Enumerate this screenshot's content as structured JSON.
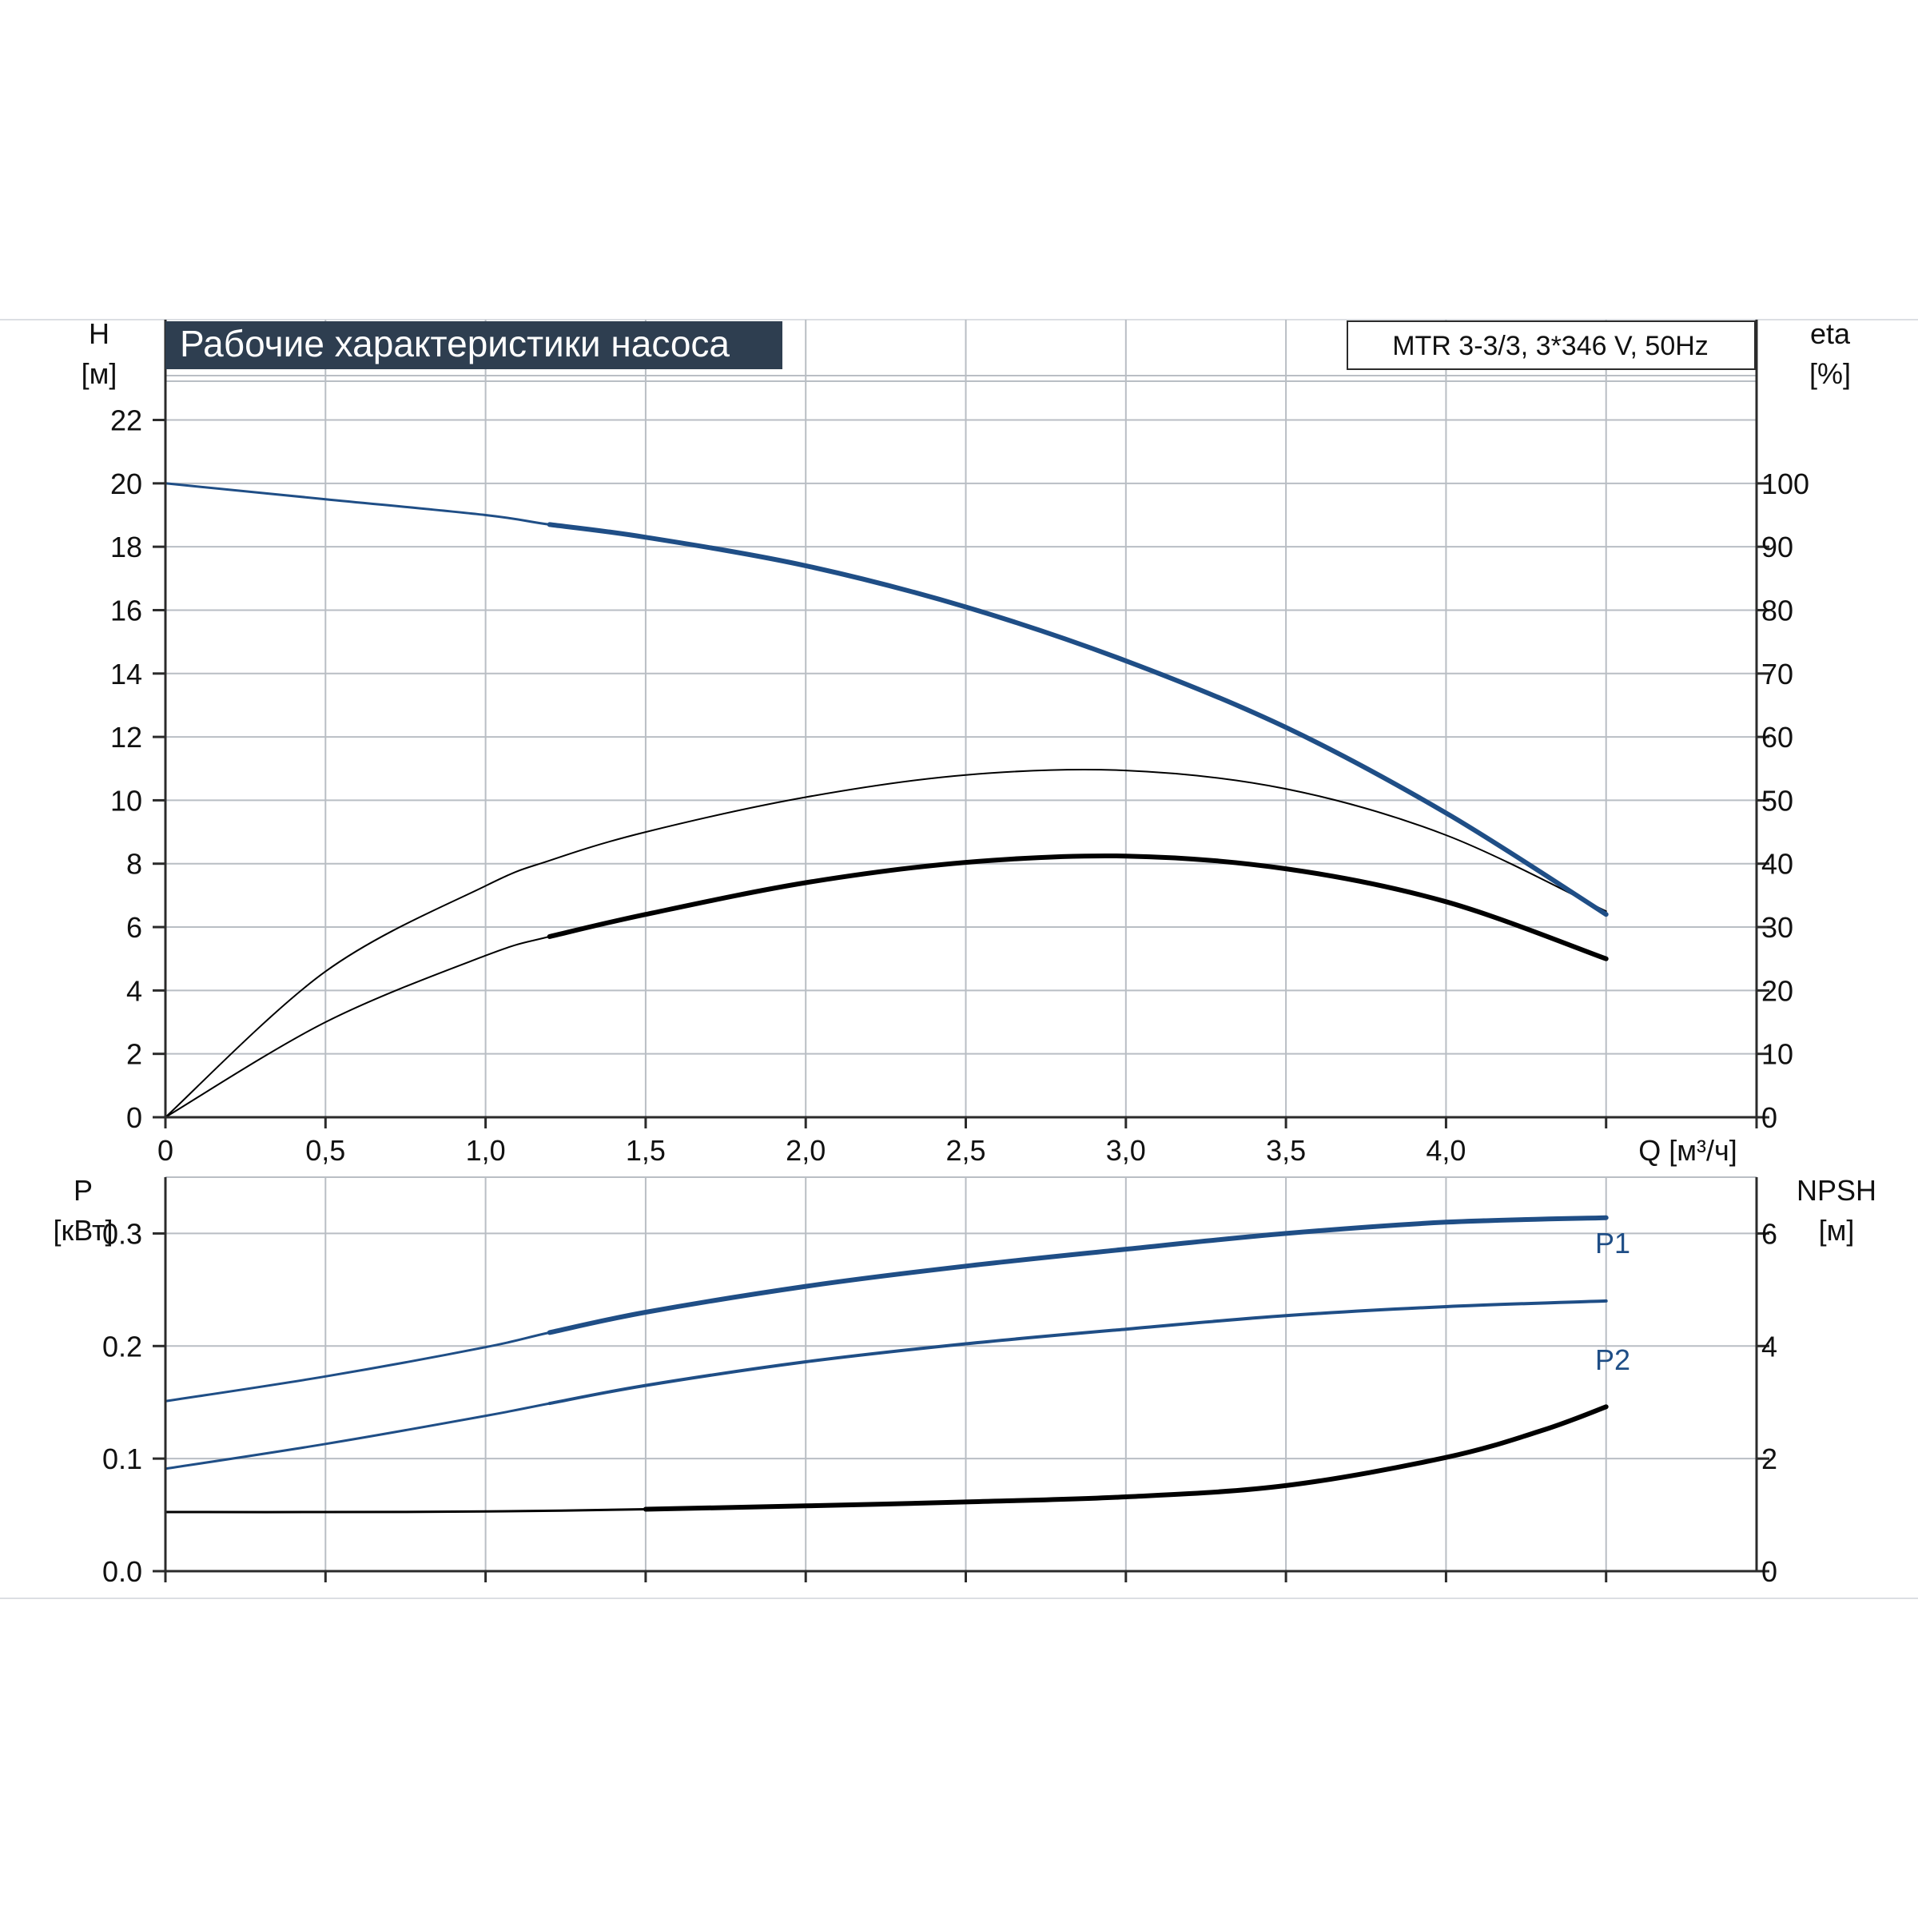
{
  "colors": {
    "background": "#ffffff",
    "grid": "#b9bec4",
    "axis": "#2b2b2b",
    "title_bg": "#2e3e50",
    "title_text": "#ffffff",
    "head_curve": "#1f4e86",
    "power_curves": "#1f4e86",
    "efficiency_curves": "#000000",
    "npsh_curve": "#000000"
  },
  "header": {
    "title": "Рабочие характеристики насоса",
    "model": "MTR 3-3/3, 3*346 V, 50Hz"
  },
  "chart_data": [
    {
      "type": "line",
      "panel": "upper",
      "title": "Рабочие характеристики насоса",
      "xlabel": "Q [м³/ч]",
      "ylabel": "H\n[м]",
      "y2label": "eta\n[%]",
      "xlim": [
        0,
        4.97
      ],
      "ylim": [
        0,
        23.4
      ],
      "y2lim": [
        0,
        117
      ],
      "x_ticks": [
        "0",
        "0,5",
        "1,0",
        "1,5",
        "2,0",
        "2,5",
        "3,0",
        "3,5",
        "4,0"
      ],
      "x_tick_values": [
        0,
        0.5,
        1.0,
        1.5,
        2.0,
        2.5,
        3.0,
        3.5,
        4.0
      ],
      "y_ticks": [
        0,
        2,
        4,
        6,
        8,
        10,
        12,
        14,
        16,
        18,
        20,
        22
      ],
      "y2_ticks": [
        0,
        10,
        20,
        30,
        40,
        50,
        60,
        70,
        80,
        90,
        100
      ],
      "grid": true,
      "series": [
        {
          "key": "H",
          "axis": "left",
          "x": [
            0,
            0.5,
            1.0,
            1.2,
            1.5,
            2.0,
            2.5,
            3.0,
            3.5,
            4.0,
            4.5
          ],
          "y": [
            20.0,
            19.5,
            19.0,
            18.7,
            18.3,
            17.4,
            16.1,
            14.4,
            12.3,
            9.6,
            6.4
          ]
        },
        {
          "key": "eta-motor-pump",
          "axis": "right",
          "x": [
            0,
            0.5,
            1.0,
            1.2,
            1.5,
            2.0,
            2.5,
            3.0,
            3.5,
            4.0,
            4.5
          ],
          "y": [
            0,
            23,
            36.5,
            40.5,
            45,
            50.5,
            54,
            54.7,
            51.8,
            44.5,
            32.5
          ]
        },
        {
          "key": "eta-total",
          "axis": "right",
          "x": [
            0,
            0.5,
            1.0,
            1.2,
            1.5,
            2.0,
            2.5,
            3.0,
            3.5,
            4.0,
            4.5
          ],
          "y": [
            0,
            15,
            25.5,
            28.5,
            32,
            37,
            40.2,
            41.2,
            39.2,
            34,
            25
          ]
        }
      ]
    },
    {
      "type": "line",
      "panel": "lower",
      "xlabel": "",
      "ylabel": "P\n[кВт]",
      "y2label": "NPSH\n[м]",
      "xlim": [
        0,
        4.97
      ],
      "ylim": [
        0,
        0.35
      ],
      "y2lim": [
        0,
        7
      ],
      "y_ticks": [
        "0.0",
        "0.1",
        "0.2",
        "0.3"
      ],
      "y_tick_values": [
        0,
        0.1,
        0.2,
        0.3
      ],
      "y2_ticks": [
        0,
        2,
        4,
        6
      ],
      "grid": true,
      "series": [
        {
          "name": "P1",
          "axis": "left",
          "x": [
            0,
            0.5,
            1.0,
            1.2,
            1.5,
            2.0,
            2.5,
            3.0,
            3.5,
            4.0,
            4.5
          ],
          "y": [
            0.151,
            0.173,
            0.199,
            0.212,
            0.23,
            0.253,
            0.271,
            0.286,
            0.3,
            0.31,
            0.314
          ]
        },
        {
          "name": "P2",
          "axis": "left",
          "x": [
            0,
            0.5,
            1.0,
            1.2,
            1.5,
            2.0,
            2.5,
            3.0,
            3.5,
            4.0,
            4.5
          ],
          "y": [
            0.091,
            0.113,
            0.138,
            0.149,
            0.165,
            0.186,
            0.202,
            0.215,
            0.227,
            0.235,
            0.24
          ]
        },
        {
          "key": "NPSH",
          "axis": "right",
          "x": [
            0,
            0.5,
            1.0,
            1.5,
            2.0,
            2.5,
            3.0,
            3.5,
            4.0,
            4.3,
            4.5
          ],
          "y": [
            1.05,
            1.05,
            1.06,
            1.1,
            1.16,
            1.23,
            1.32,
            1.52,
            2.02,
            2.5,
            2.92
          ]
        }
      ]
    }
  ]
}
